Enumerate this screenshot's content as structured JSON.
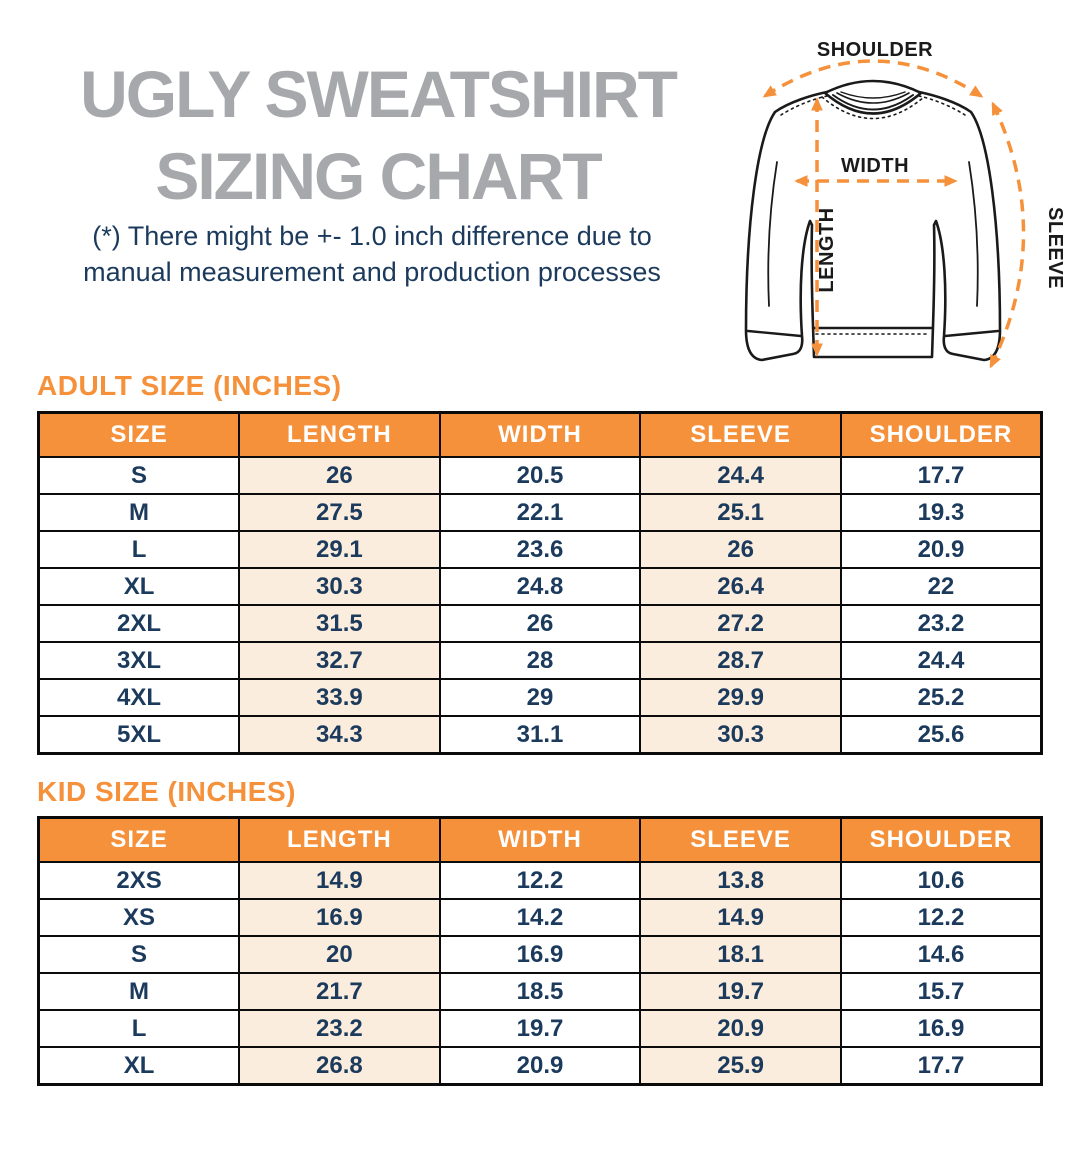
{
  "title": {
    "line1": "UGLY SWEATSHIRT",
    "line2": "SIZING CHART"
  },
  "disclaimer": {
    "line1": "(*) There might be +- 1.0 inch difference due to",
    "line2": "manual measurement and production processes"
  },
  "diagram": {
    "labels": {
      "shoulder": "SHOULDER",
      "width": "WIDTH",
      "length": "LENGTH",
      "sleeve": "SLEEVE"
    }
  },
  "colors": {
    "accent-orange": "#F6913B",
    "navy": "#1B3A5C",
    "title-gray": "#A6A8AB",
    "peach": "#FBEDDE"
  },
  "tables": {
    "adult": {
      "title": "ADULT SIZE (INCHES)",
      "headers": [
        "SIZE",
        "LENGTH",
        "WIDTH",
        "SLEEVE",
        "SHOULDER"
      ],
      "rows": [
        [
          "S",
          "26",
          "20.5",
          "24.4",
          "17.7"
        ],
        [
          "M",
          "27.5",
          "22.1",
          "25.1",
          "19.3"
        ],
        [
          "L",
          "29.1",
          "23.6",
          "26",
          "20.9"
        ],
        [
          "XL",
          "30.3",
          "24.8",
          "26.4",
          "22"
        ],
        [
          "2XL",
          "31.5",
          "26",
          "27.2",
          "23.2"
        ],
        [
          "3XL",
          "32.7",
          "28",
          "28.7",
          "24.4"
        ],
        [
          "4XL",
          "33.9",
          "29",
          "29.9",
          "25.2"
        ],
        [
          "5XL",
          "34.3",
          "31.1",
          "30.3",
          "25.6"
        ]
      ]
    },
    "kid": {
      "title": "KID SIZE (INCHES)",
      "headers": [
        "SIZE",
        "LENGTH",
        "WIDTH",
        "SLEEVE",
        "SHOULDER"
      ],
      "rows": [
        [
          "2XS",
          "14.9",
          "12.2",
          "13.8",
          "10.6"
        ],
        [
          "XS",
          "16.9",
          "14.2",
          "14.9",
          "12.2"
        ],
        [
          "S",
          "20",
          "16.9",
          "18.1",
          "14.6"
        ],
        [
          "M",
          "21.7",
          "18.5",
          "19.7",
          "15.7"
        ],
        [
          "L",
          "23.2",
          "19.7",
          "20.9",
          "16.9"
        ],
        [
          "XL",
          "26.8",
          "20.9",
          "25.9",
          "17.7"
        ]
      ]
    }
  }
}
